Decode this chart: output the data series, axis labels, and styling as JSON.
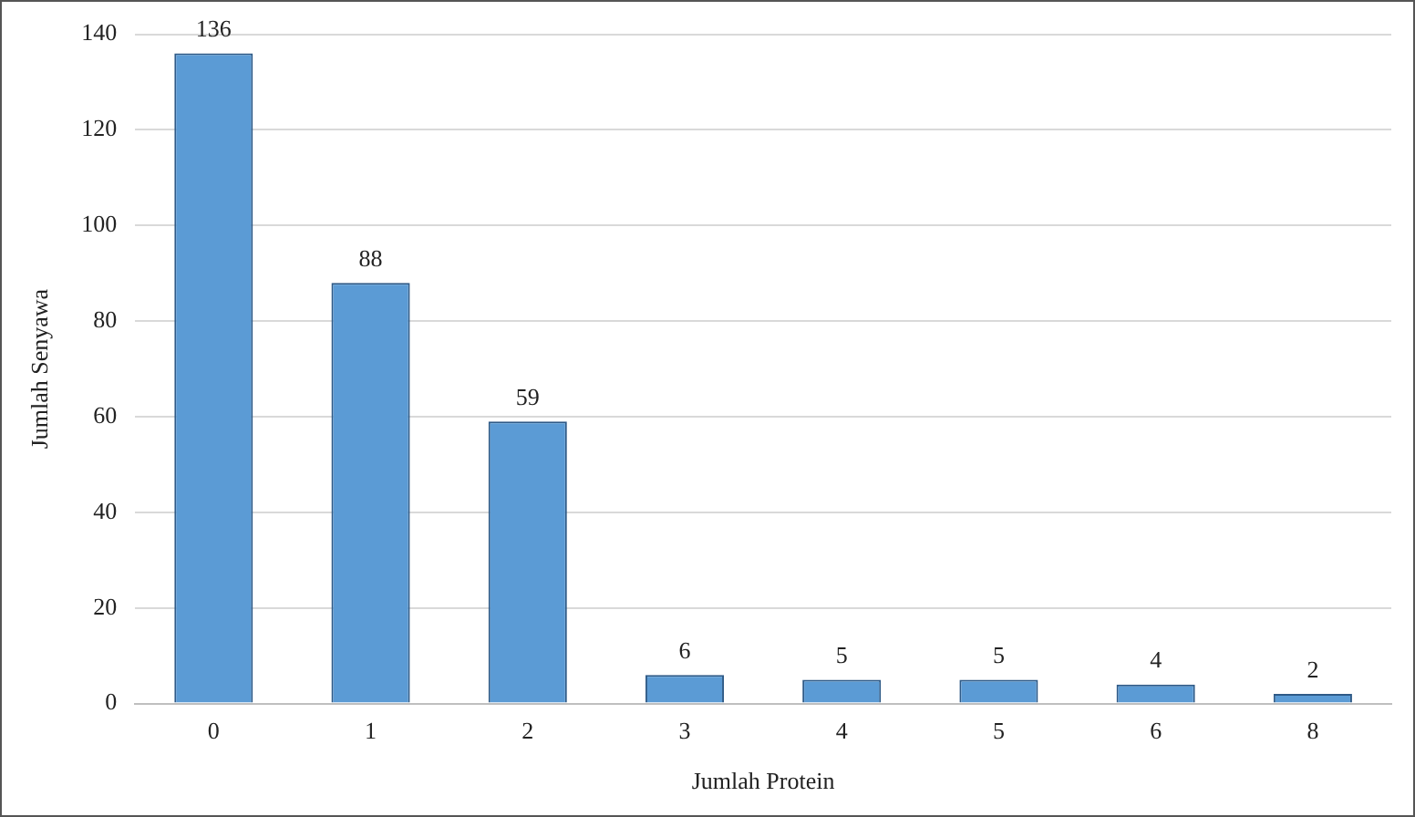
{
  "chart_data": {
    "type": "bar",
    "xlabel": "Jumlah Protein",
    "ylabel": "Jumlah Senyawa",
    "categories": [
      "0",
      "1",
      "2",
      "3",
      "4",
      "5",
      "6",
      "8"
    ],
    "values": [
      136,
      88,
      59,
      6,
      5,
      5,
      4,
      2
    ],
    "color": "#5b9bd5",
    "ylim": [
      0,
      140
    ],
    "yticks": [
      0,
      20,
      40,
      60,
      80,
      100,
      120,
      140
    ],
    "grid": "y",
    "data_labels": true,
    "legend": false
  }
}
